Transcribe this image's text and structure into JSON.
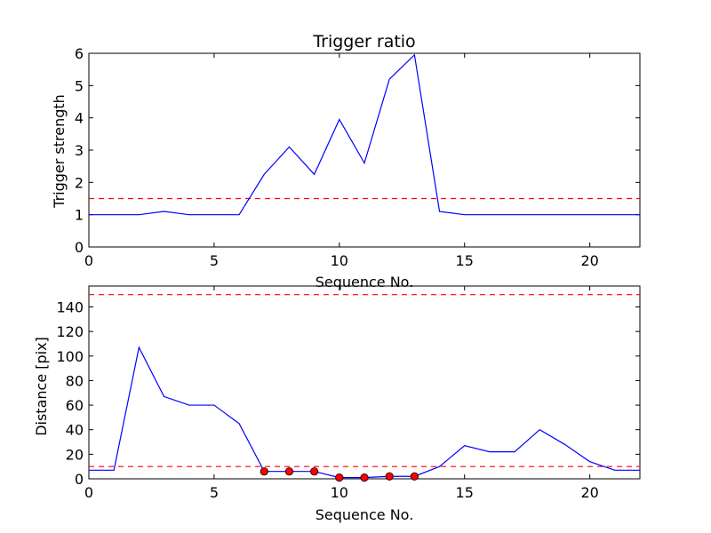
{
  "chart_data": [
    {
      "type": "line",
      "title": "Trigger ratio",
      "xlabel": "Sequence No.",
      "ylabel": "Trigger strength",
      "xlim": [
        0,
        22
      ],
      "ylim": [
        0,
        6
      ],
      "xticks": [
        0,
        5,
        10,
        15,
        20
      ],
      "yticks": [
        0,
        1,
        2,
        3,
        4,
        5,
        6
      ],
      "grid": false,
      "series": [
        {
          "color": "#0000ff",
          "x": [
            0,
            1,
            2,
            3,
            4,
            5,
            6,
            7,
            8,
            9,
            10,
            11,
            12,
            13,
            14,
            15,
            16,
            17,
            18,
            19,
            20,
            21,
            22
          ],
          "y": [
            1,
            1,
            1,
            1.1,
            1,
            1,
            1,
            2.25,
            3.1,
            2.25,
            3.95,
            2.6,
            5.2,
            5.95,
            1.1,
            1,
            1,
            1,
            1,
            1,
            1,
            1,
            1
          ]
        }
      ],
      "thresholds": [
        {
          "y": 1.5,
          "color": "#ff0000",
          "style": "dashed"
        }
      ]
    },
    {
      "type": "line",
      "title": "",
      "xlabel": "Sequence No.",
      "ylabel": "Distance [pix]",
      "xlim": [
        0,
        22
      ],
      "ylim": [
        0,
        157
      ],
      "xticks": [
        0,
        5,
        10,
        15,
        20
      ],
      "yticks": [
        0,
        20,
        40,
        60,
        80,
        100,
        120,
        140
      ],
      "grid": false,
      "series": [
        {
          "color": "#0000ff",
          "x": [
            0,
            1,
            2,
            3,
            4,
            5,
            6,
            7,
            8,
            9,
            10,
            11,
            12,
            13,
            14,
            15,
            16,
            17,
            18,
            19,
            20,
            21,
            22
          ],
          "y": [
            7,
            7,
            107,
            67,
            60,
            60,
            45,
            6,
            6,
            6,
            1,
            1,
            2,
            2,
            10,
            27,
            22,
            22,
            40,
            28,
            14,
            7,
            7
          ]
        }
      ],
      "markers": {
        "color": "#ff0000",
        "x": [
          7,
          8,
          9,
          10,
          11,
          12,
          13
        ],
        "y": [
          6,
          6,
          6,
          1,
          1,
          2,
          2
        ]
      },
      "thresholds": [
        {
          "y": 150,
          "color": "#ff0000",
          "style": "dashed"
        },
        {
          "y": 10,
          "color": "#ff0000",
          "style": "dashed"
        }
      ]
    }
  ]
}
